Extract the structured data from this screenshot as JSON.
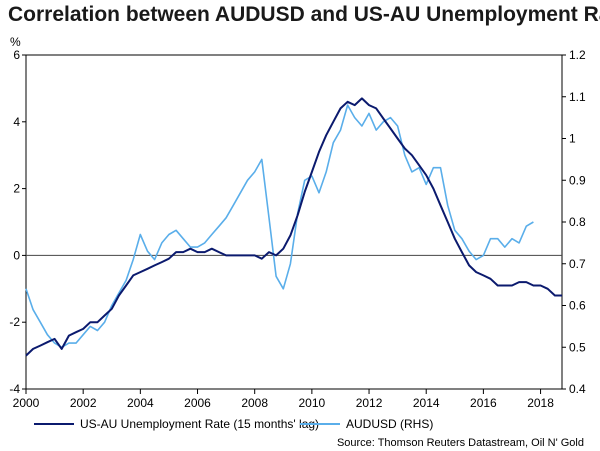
{
  "chart_data": {
    "type": "line",
    "title": "Correlation between AUDUSD and US-AU Unemployment Rate",
    "y_unit_label": "%",
    "source": "Source: Thomson Reuters Datastream, Oil N' Gold",
    "x_range": [
      2000,
      2018.75
    ],
    "x_ticks": [
      "2000",
      "2002",
      "2004",
      "2006",
      "2008",
      "2010",
      "2012",
      "2014",
      "2016",
      "2018"
    ],
    "ylim_left": [
      -4,
      6
    ],
    "y_ticks_left": [
      "-4",
      "-2",
      "0",
      "2",
      "4",
      "6"
    ],
    "ylim_right": [
      0.4,
      1.2
    ],
    "y_ticks_right": [
      "0.4",
      "0.5",
      "0.6",
      "0.7",
      "0.8",
      "0.9",
      "1",
      "1.1",
      "1.2"
    ],
    "grid": false,
    "zero_line": true,
    "legend_position": "bottom",
    "series": [
      {
        "name": "US-AU Unemployment Rate (15 months' lag)",
        "axis": "left",
        "color": "#0b1a6e",
        "x": [
          2000.0,
          2000.25,
          2000.5,
          2000.75,
          2001.0,
          2001.25,
          2001.5,
          2001.75,
          2002.0,
          2002.25,
          2002.5,
          2002.75,
          2003.0,
          2003.25,
          2003.5,
          2003.75,
          2004.0,
          2004.25,
          2004.5,
          2004.75,
          2005.0,
          2005.25,
          2005.5,
          2005.75,
          2006.0,
          2006.25,
          2006.5,
          2006.75,
          2007.0,
          2007.25,
          2007.5,
          2007.75,
          2008.0,
          2008.25,
          2008.5,
          2008.75,
          2009.0,
          2009.25,
          2009.5,
          2009.75,
          2010.0,
          2010.25,
          2010.5,
          2010.75,
          2011.0,
          2011.25,
          2011.5,
          2011.75,
          2012.0,
          2012.25,
          2012.5,
          2012.75,
          2013.0,
          2013.25,
          2013.5,
          2013.75,
          2014.0,
          2014.25,
          2014.5,
          2014.75,
          2015.0,
          2015.25,
          2015.5,
          2015.75,
          2016.0,
          2016.25,
          2016.5,
          2016.75,
          2017.0,
          2017.25,
          2017.5,
          2017.75,
          2018.0,
          2018.25,
          2018.5,
          2018.75
        ],
        "values": [
          -3.0,
          -2.8,
          -2.7,
          -2.6,
          -2.5,
          -2.8,
          -2.4,
          -2.3,
          -2.2,
          -2.0,
          -2.0,
          -1.8,
          -1.6,
          -1.2,
          -0.9,
          -0.6,
          -0.5,
          -0.4,
          -0.3,
          -0.2,
          -0.1,
          0.1,
          0.1,
          0.2,
          0.1,
          0.1,
          0.2,
          0.1,
          0.0,
          0.0,
          0.0,
          0.0,
          0.0,
          -0.1,
          0.1,
          0.0,
          0.2,
          0.6,
          1.2,
          1.9,
          2.5,
          3.1,
          3.6,
          4.0,
          4.4,
          4.6,
          4.5,
          4.7,
          4.5,
          4.4,
          4.1,
          3.8,
          3.5,
          3.2,
          3.0,
          2.7,
          2.4,
          2.0,
          1.5,
          1.0,
          0.5,
          0.1,
          -0.3,
          -0.5,
          -0.6,
          -0.7,
          -0.9,
          -0.9,
          -0.9,
          -0.8,
          -0.8,
          -0.9,
          -0.9,
          -1.0,
          -1.2,
          -1.2
        ]
      },
      {
        "name": "AUDUSD (RHS)",
        "axis": "right",
        "color": "#5aaeea",
        "x": [
          2000.0,
          2000.25,
          2000.5,
          2000.75,
          2001.0,
          2001.25,
          2001.5,
          2001.75,
          2002.0,
          2002.25,
          2002.5,
          2002.75,
          2003.0,
          2003.25,
          2003.5,
          2003.75,
          2004.0,
          2004.25,
          2004.5,
          2004.75,
          2005.0,
          2005.25,
          2005.5,
          2005.75,
          2006.0,
          2006.25,
          2006.5,
          2006.75,
          2007.0,
          2007.25,
          2007.5,
          2007.75,
          2008.0,
          2008.25,
          2008.5,
          2008.75,
          2009.0,
          2009.25,
          2009.5,
          2009.75,
          2010.0,
          2010.25,
          2010.5,
          2010.75,
          2011.0,
          2011.25,
          2011.5,
          2011.75,
          2012.0,
          2012.25,
          2012.5,
          2012.75,
          2013.0,
          2013.25,
          2013.5,
          2013.75,
          2014.0,
          2014.25,
          2014.5,
          2014.75,
          2015.0,
          2015.25,
          2015.5,
          2015.75,
          2016.0,
          2016.25,
          2016.5,
          2016.75,
          2017.0,
          2017.25,
          2017.5,
          2017.75
        ],
        "values": [
          0.64,
          0.59,
          0.56,
          0.53,
          0.51,
          0.5,
          0.51,
          0.51,
          0.53,
          0.55,
          0.54,
          0.56,
          0.6,
          0.63,
          0.66,
          0.71,
          0.77,
          0.73,
          0.71,
          0.75,
          0.77,
          0.78,
          0.76,
          0.74,
          0.74,
          0.75,
          0.77,
          0.79,
          0.81,
          0.84,
          0.87,
          0.9,
          0.92,
          0.95,
          0.81,
          0.67,
          0.64,
          0.7,
          0.82,
          0.9,
          0.91,
          0.87,
          0.92,
          0.99,
          1.02,
          1.08,
          1.05,
          1.03,
          1.06,
          1.02,
          1.04,
          1.05,
          1.03,
          0.96,
          0.92,
          0.93,
          0.89,
          0.93,
          0.93,
          0.84,
          0.78,
          0.76,
          0.73,
          0.71,
          0.72,
          0.76,
          0.76,
          0.74,
          0.76,
          0.75,
          0.79,
          0.8
        ]
      }
    ]
  }
}
